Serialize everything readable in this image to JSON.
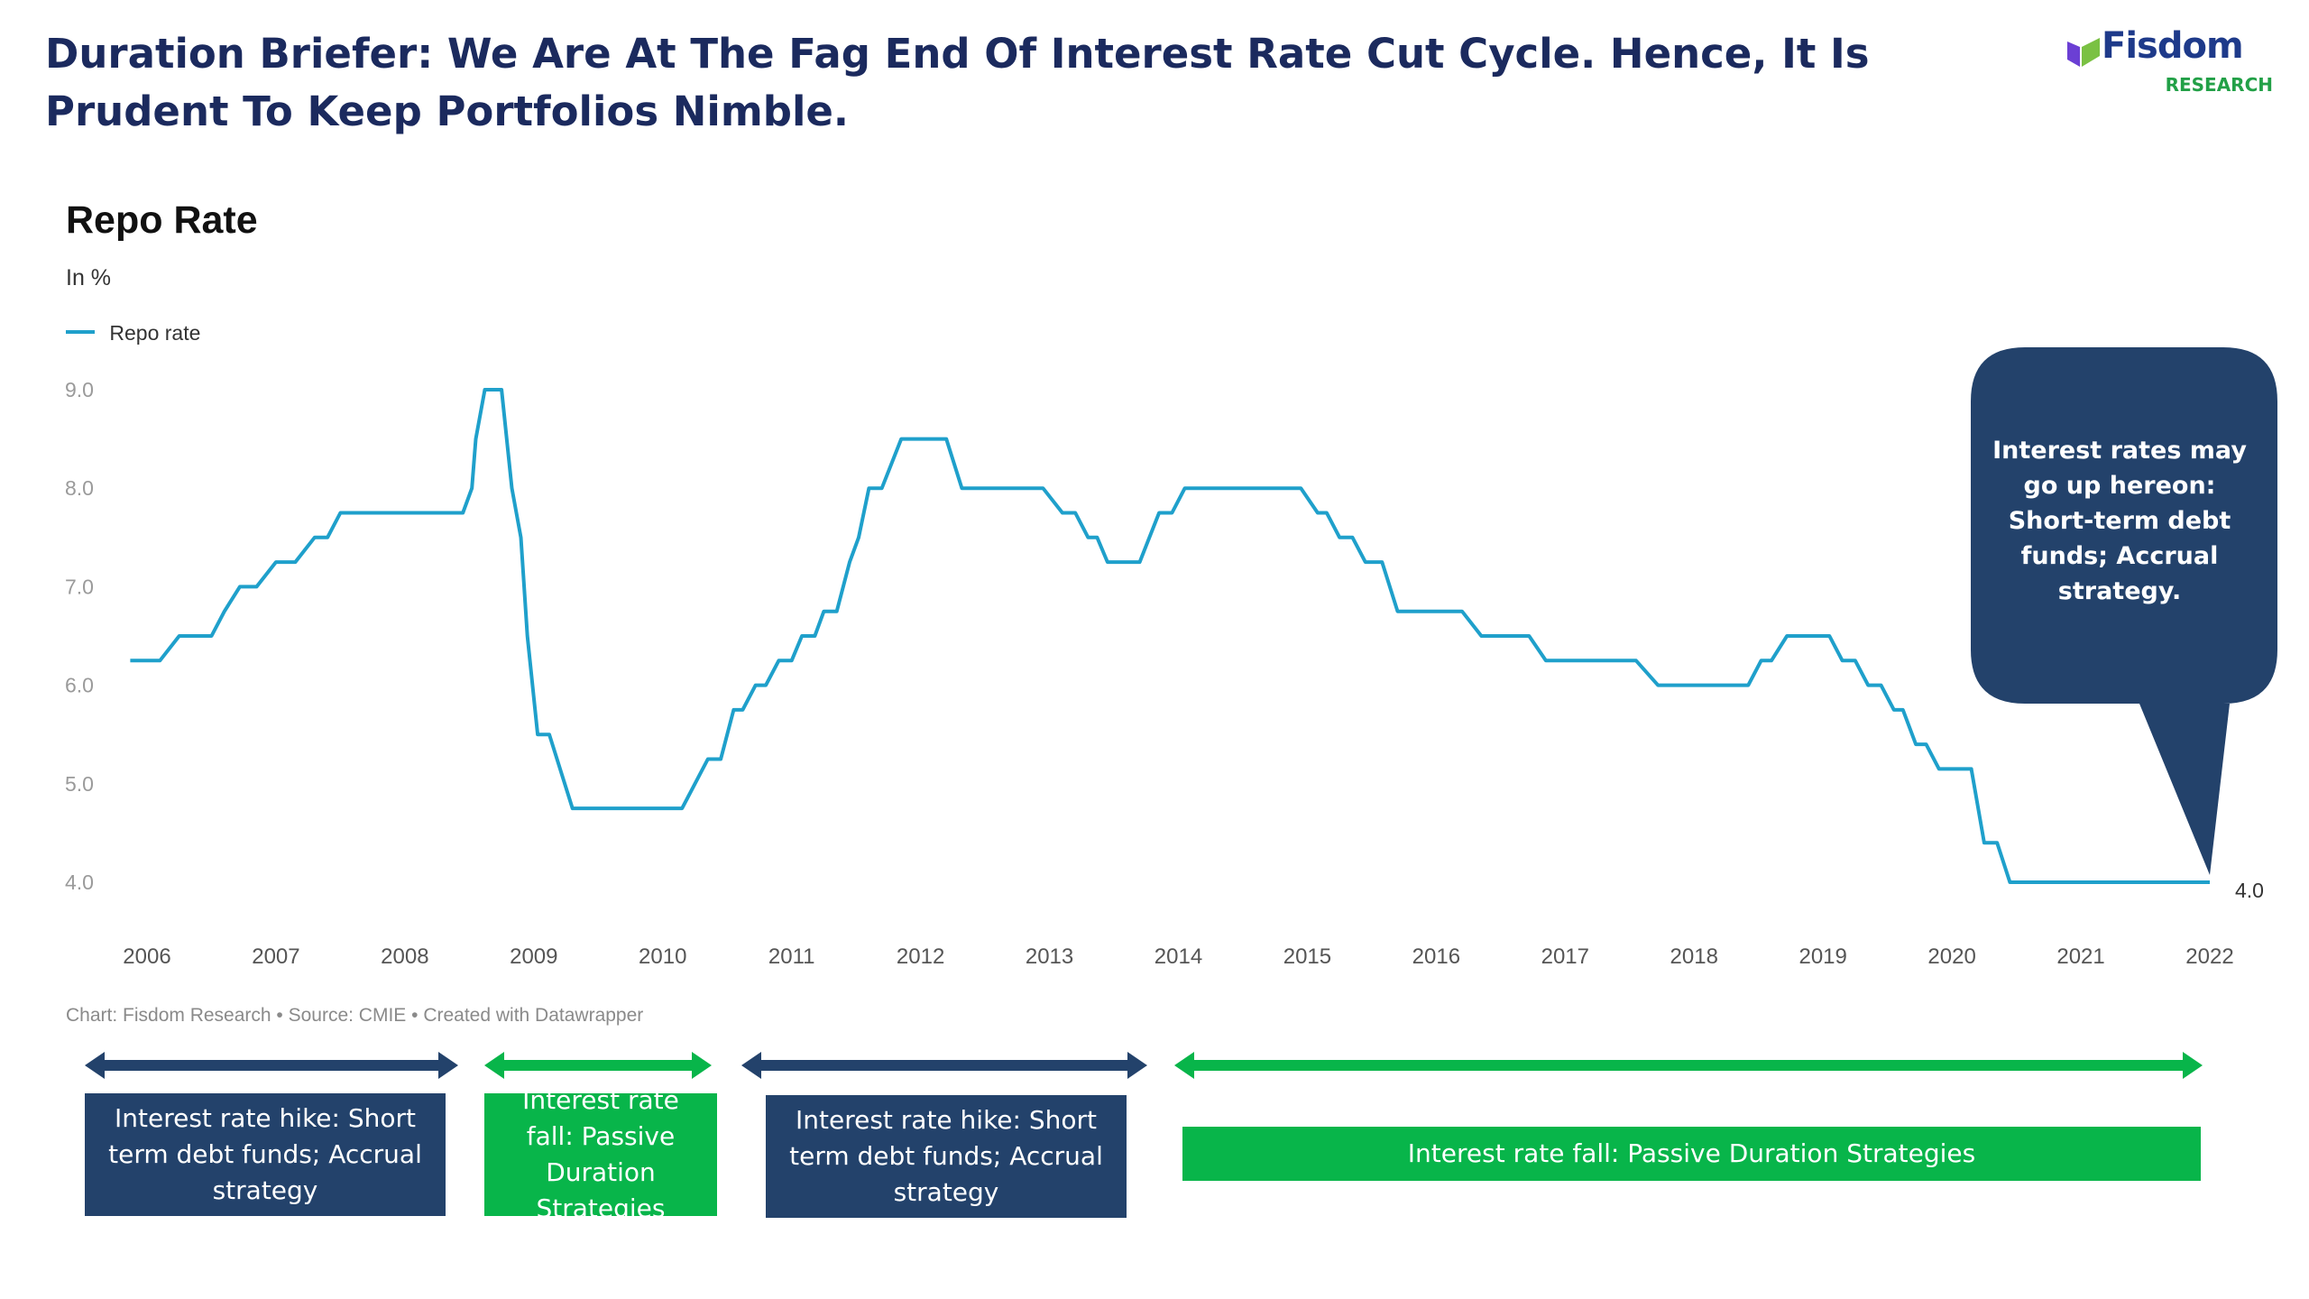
{
  "page": {
    "title": "Duration Briefer: We Are At The Fag End Of Interest Rate Cut Cycle. Hence, It Is Prudent To Keep Portfolios Nimble.",
    "logo_name": "Fisdom",
    "logo_sub": "RESEARCH",
    "colors": {
      "title": "#1b2a5e",
      "navy": "#23426b",
      "green": "#08b54a",
      "line": "#1fa0cb",
      "logo_purple": "#6b3fd4"
    }
  },
  "chart_data": {
    "type": "line",
    "title": "Repo Rate",
    "subtitle": "In %",
    "legend": [
      "Repo rate"
    ],
    "legend_position": "top-left",
    "yticks": [
      "9.0",
      "8.0",
      "7.0",
      "6.0",
      "5.0",
      "4.0"
    ],
    "ylim": [
      4.0,
      9.0
    ],
    "xticks": [
      "2006",
      "2007",
      "2008",
      "2009",
      "2010",
      "2011",
      "2012",
      "2013",
      "2014",
      "2015",
      "2016",
      "2017",
      "2018",
      "2019",
      "2020",
      "2021",
      "2022"
    ],
    "xlim": [
      2006,
      2022
    ],
    "grid": false,
    "end_label": "4.0",
    "series": [
      {
        "name": "Repo rate",
        "points": [
          [
            2005.87,
            6.25
          ],
          [
            2006.0,
            6.25
          ],
          [
            2006.1,
            6.25
          ],
          [
            2006.25,
            6.5
          ],
          [
            2006.5,
            6.5
          ],
          [
            2006.6,
            6.75
          ],
          [
            2006.72,
            7.0
          ],
          [
            2006.85,
            7.0
          ],
          [
            2007.0,
            7.25
          ],
          [
            2007.15,
            7.25
          ],
          [
            2007.3,
            7.5
          ],
          [
            2007.4,
            7.5
          ],
          [
            2007.5,
            7.75
          ],
          [
            2008.35,
            7.75
          ],
          [
            2008.45,
            7.75
          ],
          [
            2008.52,
            8.0
          ],
          [
            2008.55,
            8.5
          ],
          [
            2008.62,
            9.0
          ],
          [
            2008.75,
            9.0
          ],
          [
            2008.83,
            8.0
          ],
          [
            2008.9,
            7.5
          ],
          [
            2008.95,
            6.5
          ],
          [
            2009.03,
            5.5
          ],
          [
            2009.12,
            5.5
          ],
          [
            2009.3,
            4.75
          ],
          [
            2010.15,
            4.75
          ],
          [
            2010.25,
            5.0
          ],
          [
            2010.35,
            5.25
          ],
          [
            2010.45,
            5.25
          ],
          [
            2010.55,
            5.75
          ],
          [
            2010.62,
            5.75
          ],
          [
            2010.72,
            6.0
          ],
          [
            2010.8,
            6.0
          ],
          [
            2010.9,
            6.25
          ],
          [
            2011.0,
            6.25
          ],
          [
            2011.08,
            6.5
          ],
          [
            2011.18,
            6.5
          ],
          [
            2011.25,
            6.75
          ],
          [
            2011.35,
            6.75
          ],
          [
            2011.45,
            7.25
          ],
          [
            2011.52,
            7.5
          ],
          [
            2011.6,
            8.0
          ],
          [
            2011.7,
            8.0
          ],
          [
            2011.85,
            8.5
          ],
          [
            2012.2,
            8.5
          ],
          [
            2012.32,
            8.0
          ],
          [
            2012.95,
            8.0
          ],
          [
            2013.1,
            7.75
          ],
          [
            2013.2,
            7.75
          ],
          [
            2013.3,
            7.5
          ],
          [
            2013.37,
            7.5
          ],
          [
            2013.45,
            7.25
          ],
          [
            2013.7,
            7.25
          ],
          [
            2013.85,
            7.75
          ],
          [
            2013.95,
            7.75
          ],
          [
            2014.05,
            8.0
          ],
          [
            2014.95,
            8.0
          ],
          [
            2015.08,
            7.75
          ],
          [
            2015.15,
            7.75
          ],
          [
            2015.25,
            7.5
          ],
          [
            2015.35,
            7.5
          ],
          [
            2015.45,
            7.25
          ],
          [
            2015.58,
            7.25
          ],
          [
            2015.7,
            6.75
          ],
          [
            2016.2,
            6.75
          ],
          [
            2016.35,
            6.5
          ],
          [
            2016.72,
            6.5
          ],
          [
            2016.85,
            6.25
          ],
          [
            2017.55,
            6.25
          ],
          [
            2017.72,
            6.0
          ],
          [
            2018.42,
            6.0
          ],
          [
            2018.52,
            6.25
          ],
          [
            2018.6,
            6.25
          ],
          [
            2018.72,
            6.5
          ],
          [
            2019.05,
            6.5
          ],
          [
            2019.15,
            6.25
          ],
          [
            2019.25,
            6.25
          ],
          [
            2019.35,
            6.0
          ],
          [
            2019.45,
            6.0
          ],
          [
            2019.55,
            5.75
          ],
          [
            2019.62,
            5.75
          ],
          [
            2019.72,
            5.4
          ],
          [
            2019.8,
            5.4
          ],
          [
            2019.9,
            5.15
          ],
          [
            2020.15,
            5.15
          ],
          [
            2020.25,
            4.4
          ],
          [
            2020.35,
            4.4
          ],
          [
            2020.45,
            4.0
          ],
          [
            2022.0,
            4.0
          ]
        ]
      }
    ]
  },
  "chart_footer": "Chart: Fisdom Research • Source: CMIE • Created with Datawrapper",
  "callout": {
    "text": "Interest rates may go up hereon: Short-term debt funds; Accrual strategy."
  },
  "phases": [
    {
      "label": "Interest rate hike: Short term debt funds; Accrual strategy",
      "color": "navy"
    },
    {
      "label": "Interest rate fall: Passive Duration Strategies",
      "color": "green"
    },
    {
      "label": "Interest rate hike: Short term debt funds; Accrual strategy",
      "color": "navy"
    },
    {
      "label": "Interest rate fall: Passive Duration Strategies",
      "color": "green"
    }
  ]
}
